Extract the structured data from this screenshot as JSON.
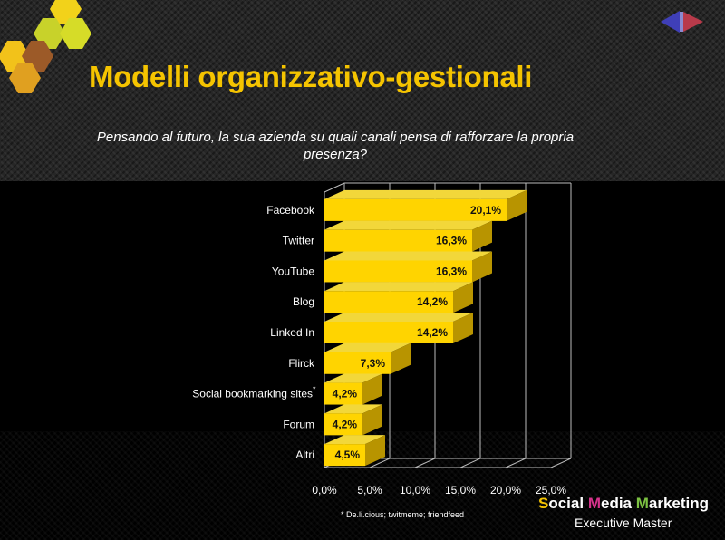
{
  "page": {
    "title": "Modelli organizzativo-gestionali",
    "subtitle": "Pensando al futuro, la sua azienda su quali canali pensa di rafforzare la propria presenza?",
    "footnote": "* De.li.cious; twitmeme; friendfeed",
    "brand": {
      "w1_cap": "S",
      "w1_rest": "ocial ",
      "w2_cap": "M",
      "w2_rest": "edia ",
      "w3_cap": "M",
      "w3_rest": "arketing",
      "sub": "Executive Master"
    }
  },
  "colors": {
    "title": "#f5c400",
    "bar_front": "#ffd400",
    "bar_top": "#f2d73a",
    "bar_side": "#b89400",
    "brand_m": "#d6338c",
    "brand_mk": "#7cc242"
  },
  "chart_data": {
    "type": "bar",
    "orientation": "horizontal",
    "three_d": true,
    "categories": [
      "Facebook",
      "Twitter",
      "YouTube",
      "Blog",
      "Linked In",
      "Flirck",
      "Social bookmarking sites*",
      "Forum",
      "Altri"
    ],
    "values": [
      20.1,
      16.3,
      16.3,
      14.2,
      14.2,
      7.3,
      4.2,
      4.2,
      4.5
    ],
    "value_labels": [
      "20,1%",
      "16,3%",
      "16,3%",
      "14,2%",
      "14,2%",
      "7,3%",
      "4,2%",
      "4,2%",
      "4,5%"
    ],
    "xlim": [
      0,
      25
    ],
    "xticks": [
      "0,0%",
      "5,0%",
      "10,0%",
      "15,0%",
      "20,0%",
      "25,0%"
    ],
    "grid": true,
    "legend": "none"
  }
}
